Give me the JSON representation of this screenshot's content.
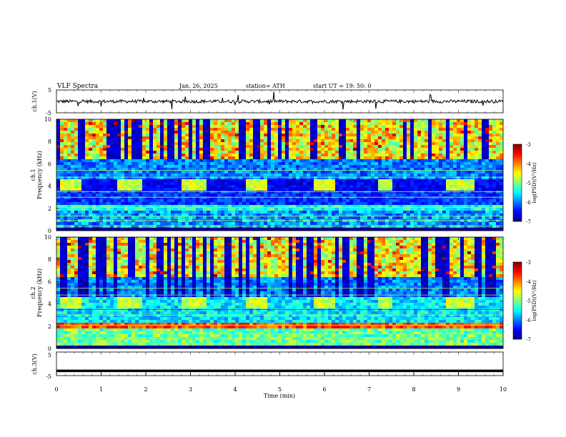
{
  "header": {
    "title": "VLF  Spectra",
    "date": "Jan. 26, 2025",
    "station": "station= ATH",
    "start_ut": "start  UT  =    19: 50: 0"
  },
  "chart_data": [
    {
      "type": "line",
      "panel": "ch1",
      "ylabel": "ch.1(V)",
      "ylim": [
        -5,
        5
      ],
      "yticks": [
        "5",
        "-5"
      ],
      "xlim": [
        0,
        10
      ],
      "description_of_signal": "noisy trace centered near 0 V with sporadic spikes"
    },
    {
      "type": "heatmap",
      "panel": "ch1-spectrogram",
      "ylabel": "Frequency  (kHz)",
      "channel_label": "ch.1",
      "ylim": [
        0,
        10
      ],
      "yticks": [
        "0",
        "2",
        "4",
        "6",
        "8",
        "10"
      ],
      "xlim": [
        0,
        10
      ],
      "colorbar": {
        "label": "log(PSD)(V²/Hz)",
        "range": [
          -7,
          -3
        ],
        "ticks": [
          "-3",
          "-4",
          "-5",
          "-6",
          "-7"
        ]
      },
      "bright_blocks_min": [
        [
          0.1,
          0.55
        ],
        [
          1.35,
          1.9
        ],
        [
          2.8,
          3.35
        ],
        [
          4.25,
          4.75
        ],
        [
          5.75,
          6.25
        ],
        [
          7.2,
          7.55
        ],
        [
          8.75,
          9.35
        ]
      ],
      "bright_block_freq_khz": [
        3.5,
        4.5
      ]
    },
    {
      "type": "heatmap",
      "panel": "ch2-spectrogram",
      "ylabel": "Frequency  (kHz)",
      "channel_label": "ch.2",
      "ylim": [
        0,
        10
      ],
      "yticks": [
        "0",
        "2",
        "4",
        "6",
        "8",
        "10"
      ],
      "xlim": [
        0,
        10
      ],
      "colorbar": {
        "label": "log(PSD)(V²/Hz)",
        "range": [
          -7,
          -3
        ],
        "ticks": [
          "-3",
          "-4",
          "-5",
          "-6",
          "-7"
        ]
      },
      "bright_blocks_min": [
        [
          0.1,
          0.55
        ],
        [
          1.35,
          1.9
        ],
        [
          2.8,
          3.35
        ],
        [
          4.25,
          4.75
        ],
        [
          5.75,
          6.25
        ],
        [
          7.2,
          7.55
        ],
        [
          8.75,
          9.35
        ]
      ],
      "bright_block_freq_khz": [
        3.5,
        4.5
      ]
    },
    {
      "type": "line",
      "panel": "ch3",
      "ylabel": "ch.3(V)",
      "ylim": [
        -5,
        5
      ],
      "yticks": [
        "5",
        "-5"
      ],
      "xlim": [
        0,
        10
      ],
      "constant_value": -3,
      "xlabel": "Time  (min)",
      "xticks": [
        "0",
        "1",
        "2",
        "3",
        "4",
        "5",
        "6",
        "7",
        "8",
        "9",
        "10"
      ]
    }
  ]
}
